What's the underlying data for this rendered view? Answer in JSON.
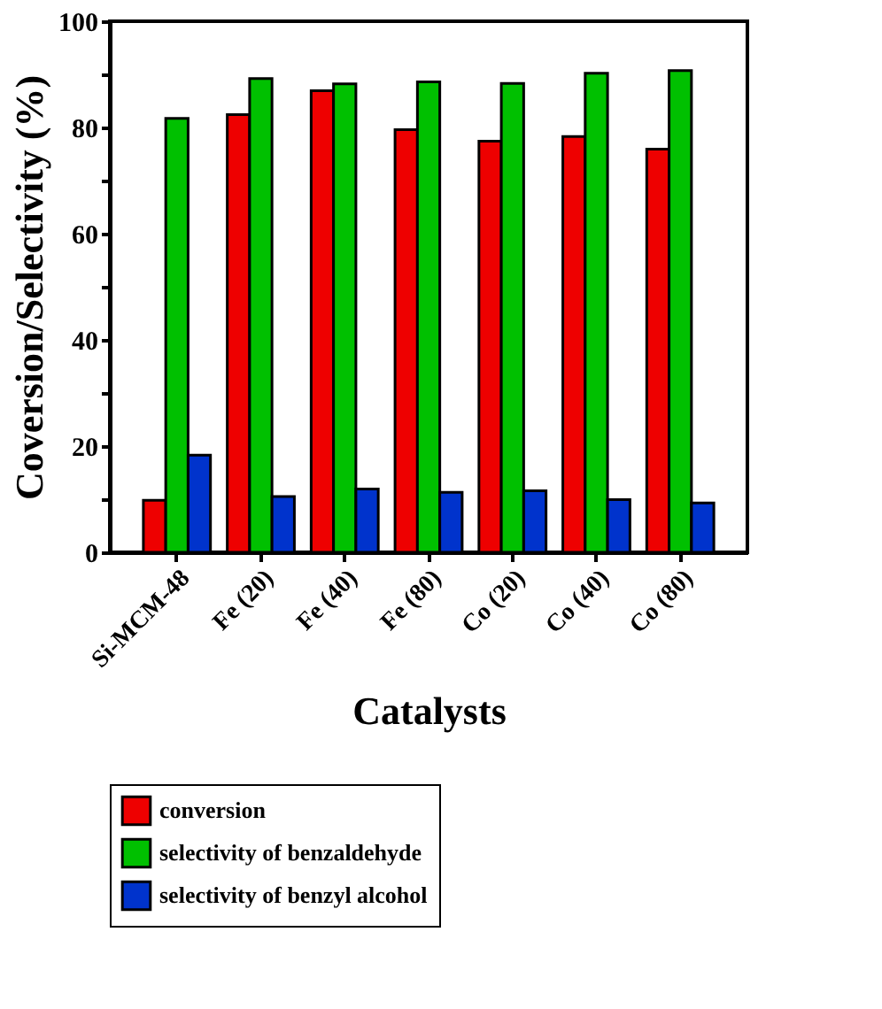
{
  "chart_data": {
    "type": "bar",
    "xlabel": "Catalysts",
    "ylabel": "Coversion/Selectivity (%)",
    "categories": [
      "Si-MCM-48",
      "Fe (20)",
      "Fe (40)",
      "Fe (80)",
      "Co (20)",
      "Co (40)",
      "Co (80)"
    ],
    "series": [
      {
        "name": "conversion",
        "color": "#ee0000",
        "values": [
          9.8,
          82.4,
          86.9,
          79.6,
          77.4,
          78.3,
          75.9
        ]
      },
      {
        "name": "selectivity of benzaldehyde",
        "color": "#00c000",
        "values": [
          81.7,
          89.2,
          88.2,
          88.6,
          88.3,
          90.2,
          90.7
        ]
      },
      {
        "name": "selectivity of benzyl alcohol",
        "color": "#0033cc",
        "values": [
          18.3,
          10.5,
          11.9,
          11.3,
          11.6,
          9.9,
          9.3
        ]
      }
    ],
    "ylim": [
      0,
      100
    ],
    "yticks": [
      0,
      {
        "value": 10,
        "label": null
      },
      20,
      {
        "value": 30,
        "label": null
      },
      40,
      {
        "value": 50,
        "label": null
      },
      60,
      {
        "value": 70,
        "label": null
      },
      80,
      {
        "value": 90,
        "label": null
      },
      100
    ],
    "grid": false,
    "legend": "bottom"
  }
}
